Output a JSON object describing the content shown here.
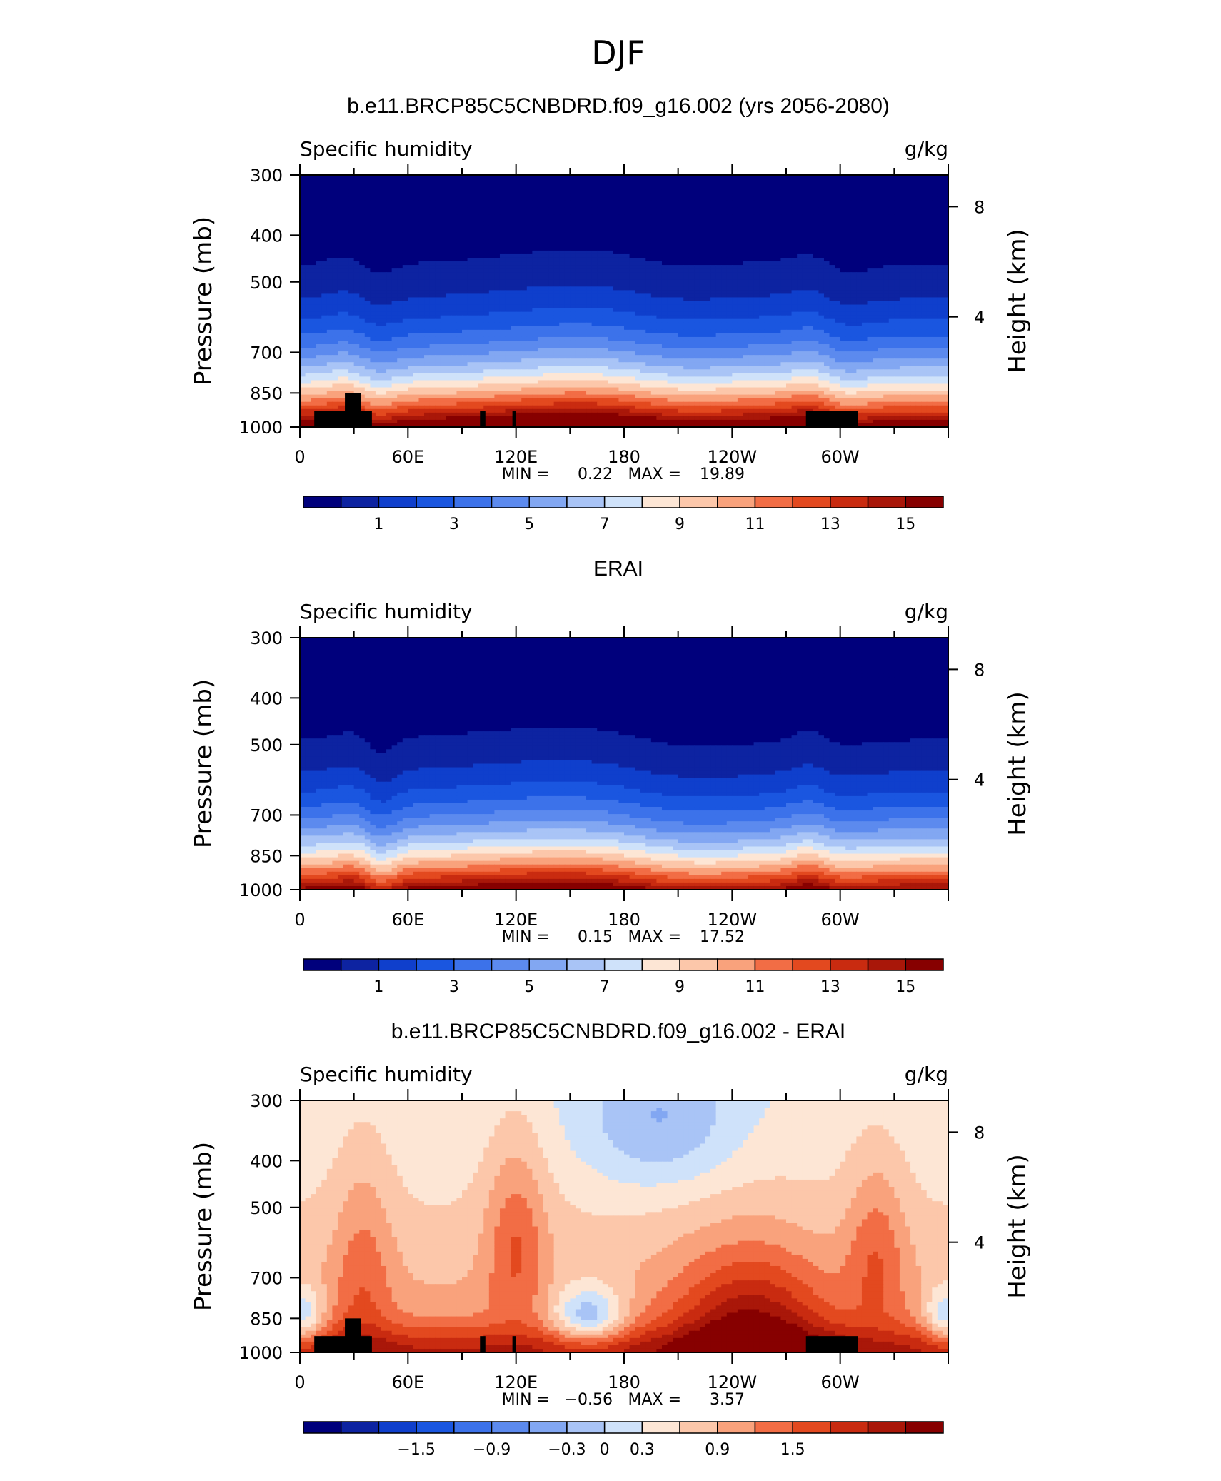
{
  "figure": {
    "title": "DJF",
    "colors": {
      "abs": [
        "#00007c",
        "#0d23a1",
        "#0f3fcc",
        "#1a56e0",
        "#3c72ea",
        "#5c8aee",
        "#82a7f2",
        "#a9c4f6",
        "#cfe2fa",
        "#fde6d5",
        "#fcc7aa",
        "#f9a27c",
        "#f26d45",
        "#e3491f",
        "#c92b10",
        "#a91709",
        "#870000"
      ],
      "diff": [
        "#00007c",
        "#0d23a1",
        "#0f3fcc",
        "#1a56e0",
        "#3c72ea",
        "#5c8aee",
        "#82a7f2",
        "#a9c4f6",
        "#cfe2fa",
        "#fde6d5",
        "#fcc7aa",
        "#f9a27c",
        "#f26d45",
        "#e3491f",
        "#c92b10",
        "#a91709",
        "#870000"
      ]
    }
  },
  "chart_data": [
    {
      "type": "heatmap",
      "title": "b.e11.BRCP85C5CNBDRD.f09_g16.002 (yrs 2056-2080)",
      "variable_label": "Specific humidity",
      "units_label": "g/kg",
      "ylabel": "Pressure (mb)",
      "y2label": "Height (km)",
      "x_ticks": [
        "0",
        "60E",
        "120E",
        "180",
        "120W",
        "60W"
      ],
      "x_tick_values": [
        0,
        60,
        120,
        180,
        240,
        300
      ],
      "xlim": [
        0,
        360
      ],
      "y_ticks": [
        "300",
        "400",
        "500",
        "700",
        "850",
        "1000"
      ],
      "y_tick_values": [
        300,
        400,
        500,
        700,
        850,
        1000
      ],
      "ylim": [
        1000,
        300
      ],
      "y2_ticks": [
        "8",
        "4"
      ],
      "y2_tick_values": [
        8,
        4
      ],
      "min_label": "MIN =",
      "min_value": "0.22",
      "max_label": "MAX =",
      "max_value": "19.89",
      "colorbar_levels": [
        0,
        1,
        2,
        3,
        4,
        5,
        6,
        7,
        8,
        9,
        10,
        11,
        12,
        13,
        14,
        15,
        16
      ],
      "colorbar_tick_labels": [
        "1",
        "3",
        "5",
        "7",
        "9",
        "11",
        "13",
        "15"
      ],
      "colorbar_tick_level_index": [
        1,
        3,
        5,
        7,
        9,
        11,
        13,
        15
      ],
      "topography_mask": true,
      "field_kind": "model"
    },
    {
      "type": "heatmap",
      "title": "ERAI",
      "variable_label": "Specific humidity",
      "units_label": "g/kg",
      "ylabel": "Pressure (mb)",
      "y2label": "Height (km)",
      "x_ticks": [
        "0",
        "60E",
        "120E",
        "180",
        "120W",
        "60W"
      ],
      "x_tick_values": [
        0,
        60,
        120,
        180,
        240,
        300
      ],
      "xlim": [
        0,
        360
      ],
      "y_ticks": [
        "300",
        "400",
        "500",
        "700",
        "850",
        "1000"
      ],
      "y_tick_values": [
        300,
        400,
        500,
        700,
        850,
        1000
      ],
      "ylim": [
        1000,
        300
      ],
      "y2_ticks": [
        "8",
        "4"
      ],
      "y2_tick_values": [
        8,
        4
      ],
      "min_label": "MIN =",
      "min_value": "0.15",
      "max_label": "MAX =",
      "max_value": "17.52",
      "colorbar_levels": [
        0,
        1,
        2,
        3,
        4,
        5,
        6,
        7,
        8,
        9,
        10,
        11,
        12,
        13,
        14,
        15,
        16
      ],
      "colorbar_tick_labels": [
        "1",
        "3",
        "5",
        "7",
        "9",
        "11",
        "13",
        "15"
      ],
      "colorbar_tick_level_index": [
        1,
        3,
        5,
        7,
        9,
        11,
        13,
        15
      ],
      "topography_mask": false,
      "field_kind": "obs"
    },
    {
      "type": "heatmap",
      "title": "b.e11.BRCP85C5CNBDRD.f09_g16.002 - ERAI",
      "variable_label": "Specific humidity",
      "units_label": "g/kg",
      "ylabel": "Pressure (mb)",
      "y2label": "Height (km)",
      "x_ticks": [
        "0",
        "60E",
        "120E",
        "180",
        "120W",
        "60W"
      ],
      "x_tick_values": [
        0,
        60,
        120,
        180,
        240,
        300
      ],
      "xlim": [
        0,
        360
      ],
      "y_ticks": [
        "300",
        "400",
        "500",
        "700",
        "850",
        "1000"
      ],
      "y_tick_values": [
        300,
        400,
        500,
        700,
        850,
        1000
      ],
      "ylim": [
        1000,
        300
      ],
      "y2_ticks": [
        "8",
        "4"
      ],
      "y2_tick_values": [
        8,
        4
      ],
      "min_label": "MIN =",
      "min_value": "−0.56",
      "max_label": "MAX =",
      "max_value": "3.57",
      "colorbar_levels": [
        -2.4,
        -2.1,
        -1.8,
        -1.5,
        -1.2,
        -0.9,
        -0.6,
        -0.3,
        0,
        0.3,
        0.6,
        0.9,
        1.2,
        1.5,
        1.8,
        2.1,
        2.4
      ],
      "colorbar_tick_labels": [
        "−1.5",
        "−0.9",
        "−0.3",
        "0",
        "0.3",
        "0.9",
        "1.5"
      ],
      "colorbar_tick_level_index": [
        3,
        5,
        7,
        8,
        9,
        11,
        13
      ],
      "topography_mask": true,
      "field_kind": "diff"
    }
  ]
}
